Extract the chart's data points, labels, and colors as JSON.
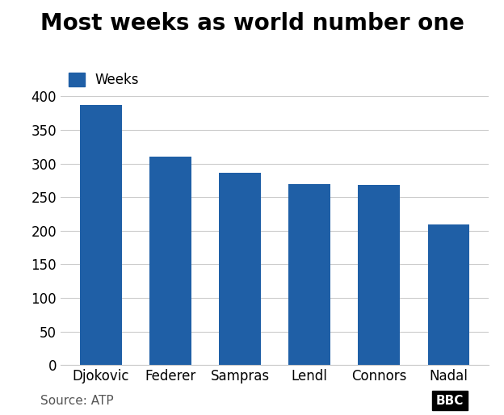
{
  "title": "Most weeks as world number one",
  "categories": [
    "Djokovic",
    "Federer",
    "Sampras",
    "Lendl",
    "Connors",
    "Nadal"
  ],
  "values": [
    387,
    310,
    286,
    270,
    268,
    209
  ],
  "bar_color": "#1f5fa6",
  "legend_label": "Weeks",
  "ylim": [
    0,
    420
  ],
  "yticks": [
    0,
    50,
    100,
    150,
    200,
    250,
    300,
    350,
    400
  ],
  "source_text": "Source: ATP",
  "bbc_text": "BBC",
  "title_fontsize": 20,
  "label_fontsize": 12,
  "tick_fontsize": 12,
  "source_fontsize": 11,
  "background_color": "#ffffff"
}
